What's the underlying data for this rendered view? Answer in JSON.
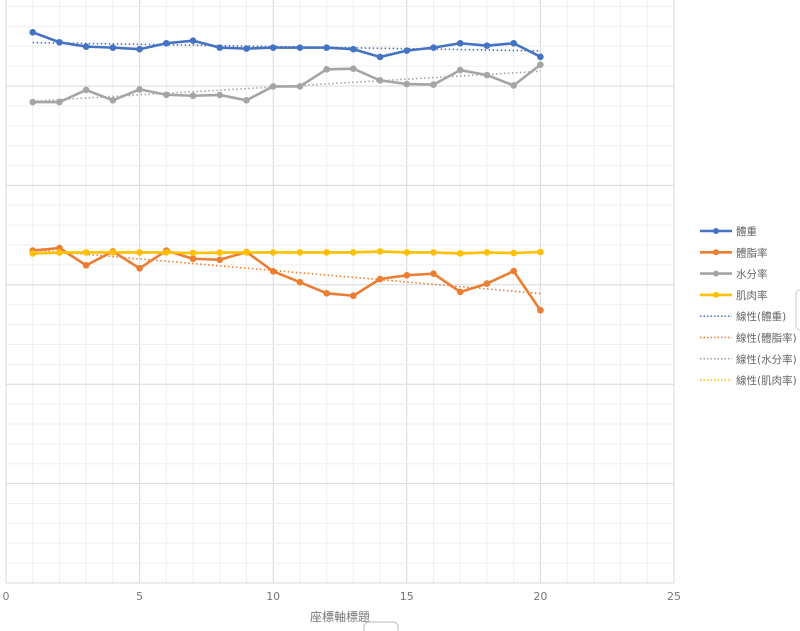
{
  "chart_data": {
    "type": "line",
    "title": "",
    "xlabel": "座標軸標題",
    "ylabel": "",
    "xlim": [
      0,
      25
    ],
    "ylim": [
      0,
      30
    ],
    "x_ticks": [
      "0",
      "5",
      "10",
      "15",
      "20",
      "25"
    ],
    "grid": true,
    "legend_position": "right",
    "x": [
      1,
      2,
      3,
      4,
      5,
      6,
      7,
      8,
      9,
      10,
      11,
      12,
      13,
      14,
      15,
      16,
      17,
      18,
      19,
      20
    ],
    "series": [
      {
        "name": "體重",
        "color": "#4472C4",
        "values": [
          27.7,
          27.2,
          26.98,
          26.93,
          26.85,
          27.15,
          27.28,
          26.93,
          26.88,
          26.93,
          26.93,
          26.93,
          26.85,
          26.46,
          26.78,
          26.93,
          27.15,
          27.03,
          27.15,
          26.47
        ]
      },
      {
        "name": "體脂率",
        "color": "#ED7D31",
        "values": [
          16.72,
          16.85,
          15.98,
          16.68,
          15.83,
          16.72,
          16.31,
          16.26,
          16.65,
          15.68,
          15.13,
          14.57,
          14.45,
          15.29,
          15.48,
          15.56,
          14.64,
          15.06,
          15.69,
          13.72
        ]
      },
      {
        "name": "水分率",
        "color": "#A5A5A5",
        "values": [
          24.19,
          24.19,
          24.8,
          24.28,
          24.83,
          24.56,
          24.51,
          24.55,
          24.28,
          24.98,
          24.98,
          25.84,
          25.87,
          25.28,
          25.1,
          25.07,
          25.8,
          25.55,
          25.03,
          26.07
        ]
      },
      {
        "name": "肌肉率",
        "color": "#FFC000",
        "values": [
          16.58,
          16.62,
          16.63,
          16.63,
          16.63,
          16.63,
          16.6,
          16.62,
          16.63,
          16.63,
          16.63,
          16.63,
          16.63,
          16.68,
          16.63,
          16.63,
          16.58,
          16.63,
          16.6,
          16.65
        ]
      }
    ],
    "trendlines": [
      {
        "name": "線性(體重)",
        "of": 0
      },
      {
        "name": "線性(體脂率)",
        "of": 1
      },
      {
        "name": "線性(水分率)",
        "of": 2
      },
      {
        "name": "線性(肌肉率)",
        "of": 3
      }
    ]
  }
}
